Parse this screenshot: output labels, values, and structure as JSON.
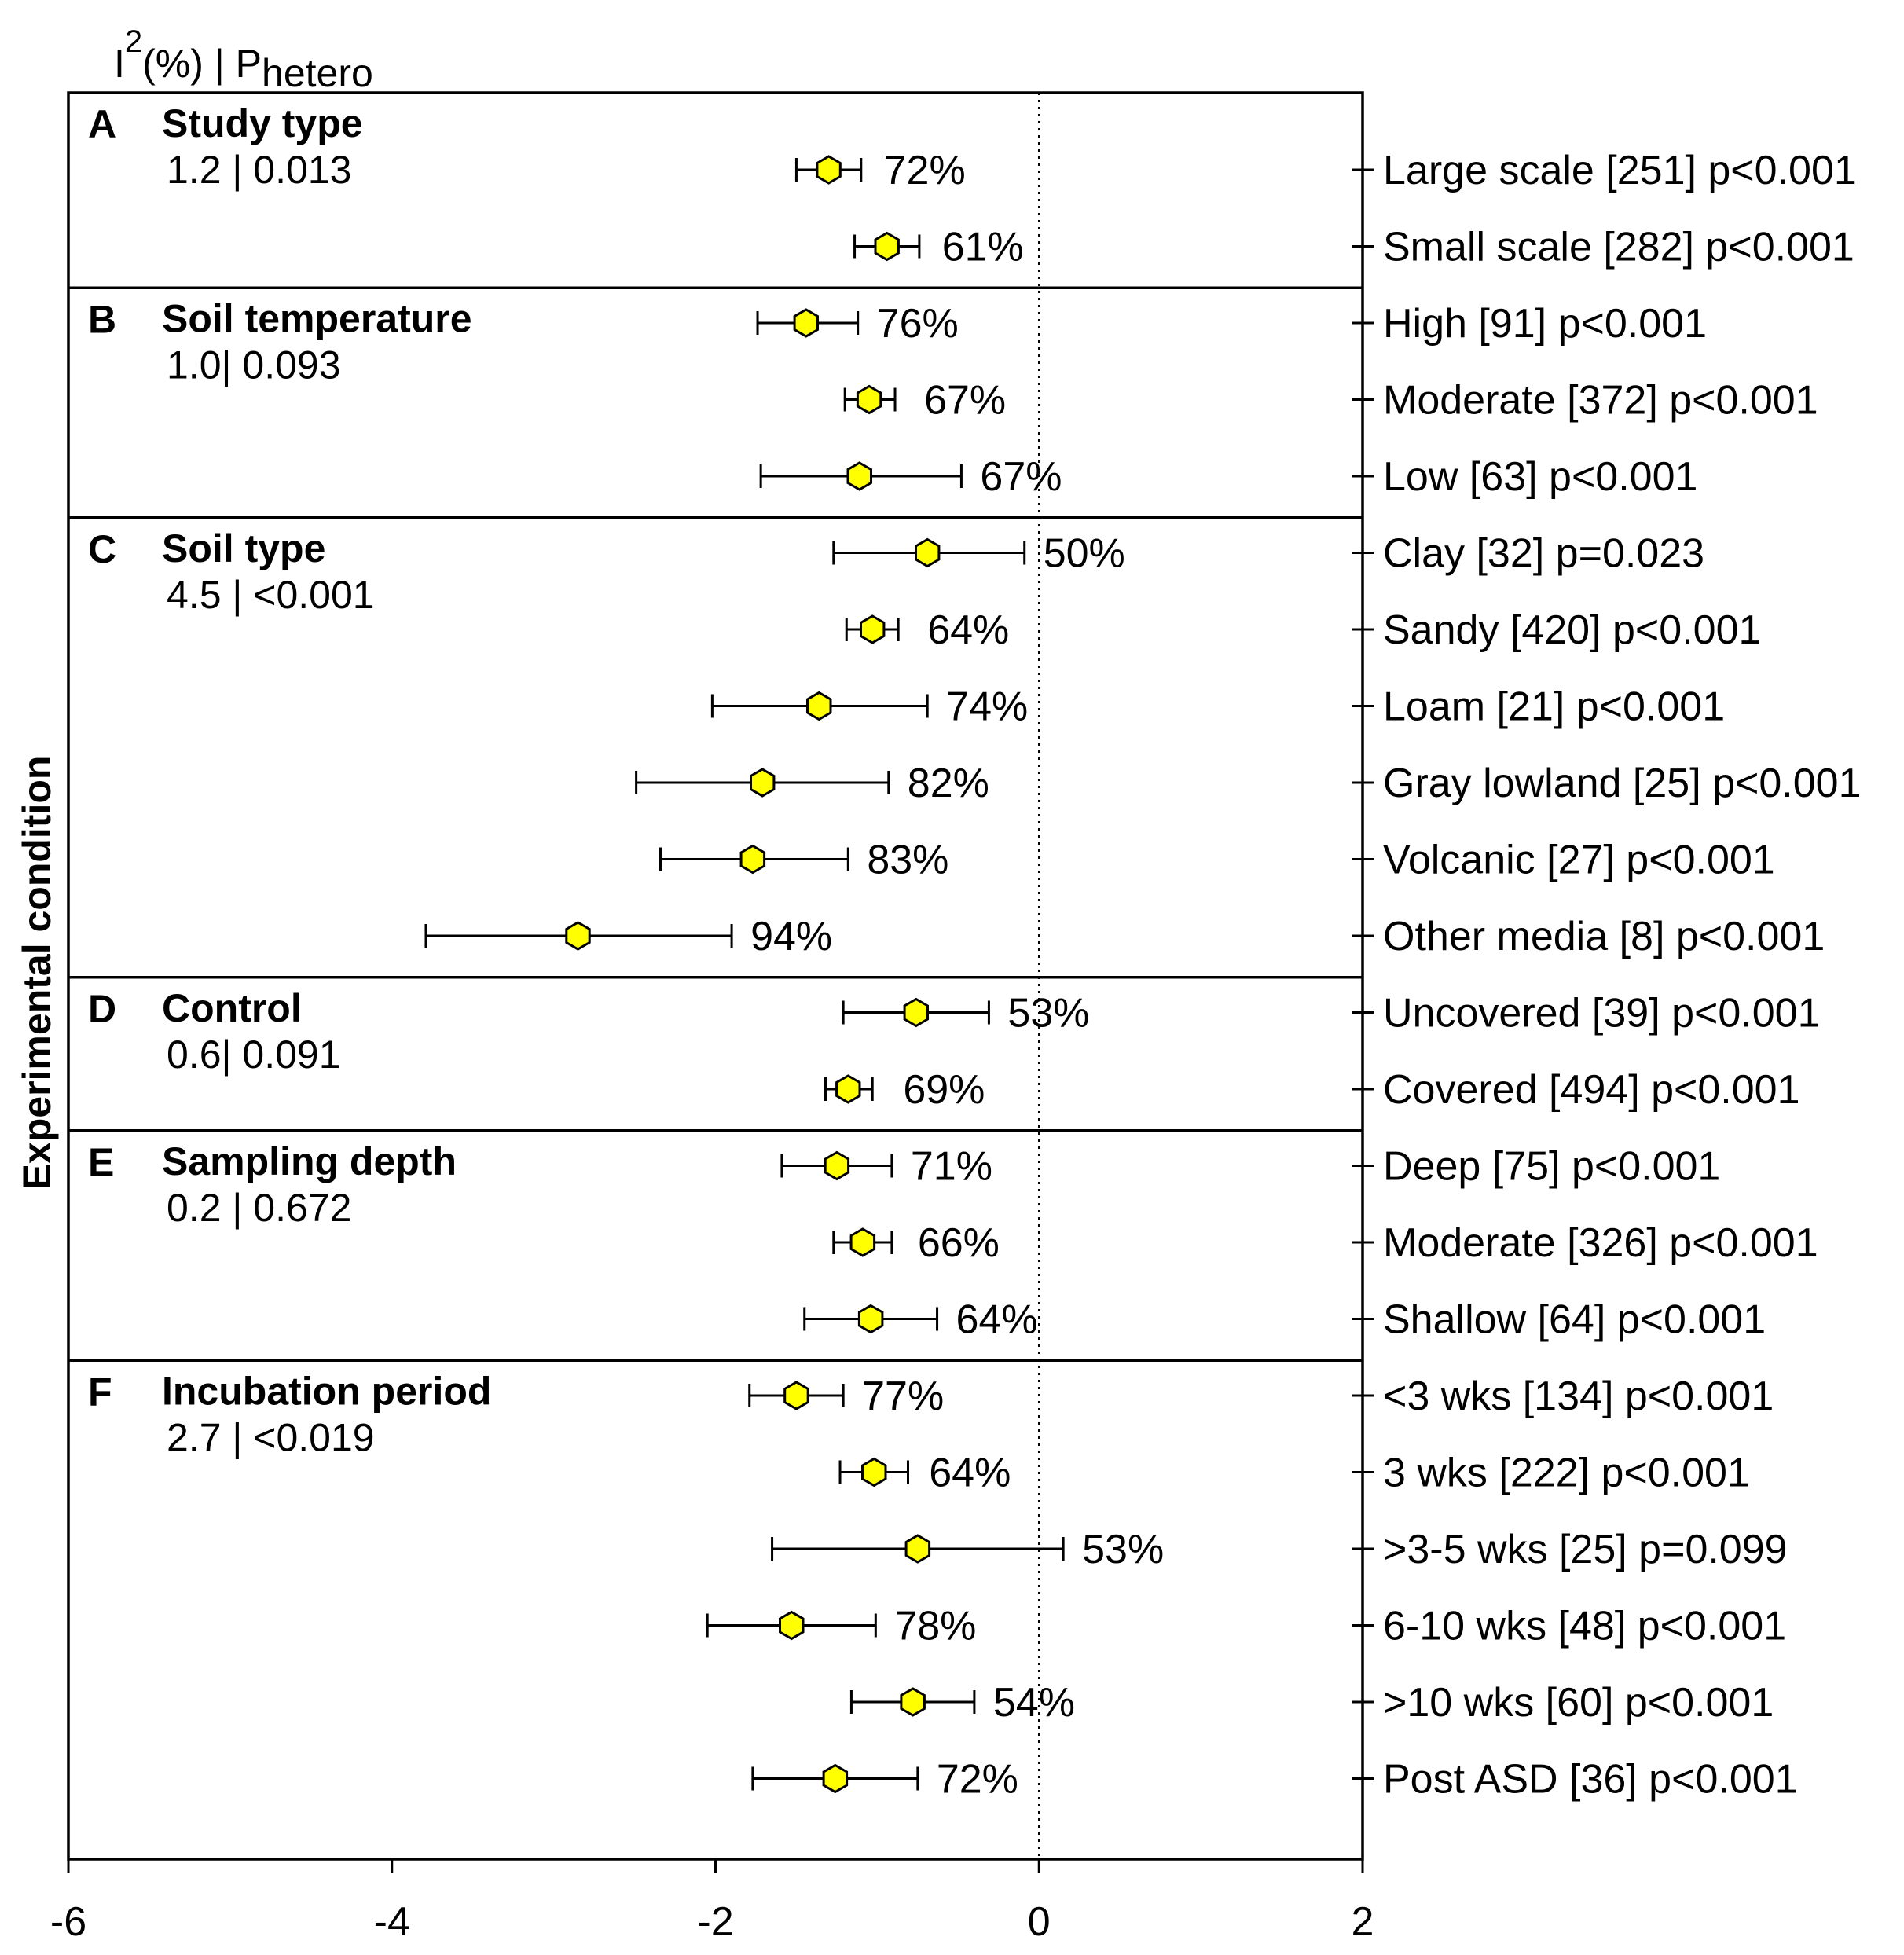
{
  "chart_data": {
    "type": "forest",
    "header": {
      "base": "I",
      "sup": "2",
      "mid": "(%) | P",
      "sub": "hetero"
    },
    "ylabel": "Experimental condition",
    "xlim": [
      -6,
      2
    ],
    "xticks": [
      "-6",
      "-4",
      "-2",
      "0",
      "2"
    ],
    "reference_line": 0,
    "groups": [
      {
        "letter": "A",
        "title": "Study type",
        "stats": "1.2 | 0.013",
        "rows": [
          {
            "label": "Large scale [251] p<0.001",
            "est": -1.3,
            "lo": -1.5,
            "hi": -1.1,
            "i2": "72%"
          },
          {
            "label": "Small scale [282] p<0.001",
            "est": -0.94,
            "lo": -1.14,
            "hi": -0.74,
            "i2": "61%"
          }
        ]
      },
      {
        "letter": "B",
        "title": "Soil temperature",
        "stats": "1.0| 0.093",
        "rows": [
          {
            "label": "High [91] p<0.001",
            "est": -1.44,
            "lo": -1.74,
            "hi": -1.12,
            "i2": "76%"
          },
          {
            "label": "Moderate [372] p<0.001",
            "est": -1.05,
            "lo": -1.2,
            "hi": -0.89,
            "i2": "67%"
          },
          {
            "label": "Low [63] p<0.001",
            "est": -1.11,
            "lo": -1.72,
            "hi": -0.48,
            "i2": "67%"
          }
        ]
      },
      {
        "letter": "C",
        "title": "Soil type",
        "stats": "4.5 | <0.001",
        "rows": [
          {
            "label": "Clay [32] p=0.023",
            "est": -0.69,
            "lo": -1.27,
            "hi": -0.09,
            "i2": "50%"
          },
          {
            "label": "Sandy [420] p<0.001",
            "est": -1.03,
            "lo": -1.19,
            "hi": -0.87,
            "i2": "64%"
          },
          {
            "label": "Loam [21] p<0.001",
            "est": -1.36,
            "lo": -2.02,
            "hi": -0.69,
            "i2": "74%"
          },
          {
            "label": "Gray lowland [25] p<0.001",
            "est": -1.71,
            "lo": -2.49,
            "hi": -0.93,
            "i2": "82%"
          },
          {
            "label": "Volcanic [27] p<0.001",
            "est": -1.77,
            "lo": -2.34,
            "hi": -1.18,
            "i2": "83%"
          },
          {
            "label": "Other media [8] p<0.001",
            "est": -2.85,
            "lo": -3.79,
            "hi": -1.9,
            "i2": "94%"
          }
        ]
      },
      {
        "letter": "D",
        "title": "Control",
        "stats": "0.6| 0.091",
        "rows": [
          {
            "label": "Uncovered [39] p<0.001",
            "est": -0.76,
            "lo": -1.21,
            "hi": -0.31,
            "i2": "53%"
          },
          {
            "label": "Covered [494] p<0.001",
            "est": -1.18,
            "lo": -1.32,
            "hi": -1.03,
            "i2": "69%"
          }
        ]
      },
      {
        "letter": "E",
        "title": "Sampling depth",
        "stats": "0.2 | 0.672",
        "rows": [
          {
            "label": "Deep [75] p<0.001",
            "est": -1.25,
            "lo": -1.59,
            "hi": -0.91,
            "i2": "71%"
          },
          {
            "label": "Moderate [326] p<0.001",
            "est": -1.09,
            "lo": -1.27,
            "hi": -0.91,
            "i2": "66%"
          },
          {
            "label": "Shallow [64] p<0.001",
            "est": -1.04,
            "lo": -1.45,
            "hi": -0.63,
            "i2": "64%"
          }
        ]
      },
      {
        "letter": "F",
        "title": "Incubation period",
        "stats": "2.7 | <0.019",
        "rows": [
          {
            "label": "<3 wks [134] p<0.001",
            "est": -1.5,
            "lo": -1.79,
            "hi": -1.21,
            "i2": "77%"
          },
          {
            "label": "3 wks [222] p<0.001",
            "est": -1.02,
            "lo": -1.23,
            "hi": -0.81,
            "i2": "64%"
          },
          {
            "label": ">3-5 wks [25] p=0.099",
            "est": -0.75,
            "lo": -1.65,
            "hi": 0.15,
            "i2": "53%"
          },
          {
            "label": "6-10 wks [48] p<0.001",
            "est": -1.53,
            "lo": -2.05,
            "hi": -1.01,
            "i2": "78%"
          },
          {
            "label": ">10 wks [60] p<0.001",
            "est": -0.78,
            "lo": -1.16,
            "hi": -0.4,
            "i2": "54%"
          },
          {
            "label": "Post ASD [36] p<0.001",
            "est": -1.26,
            "lo": -1.77,
            "hi": -0.75,
            "i2": "72%"
          }
        ]
      }
    ],
    "colors": {
      "marker_fill": "#ffff00",
      "marker_stroke": "#000000"
    }
  }
}
